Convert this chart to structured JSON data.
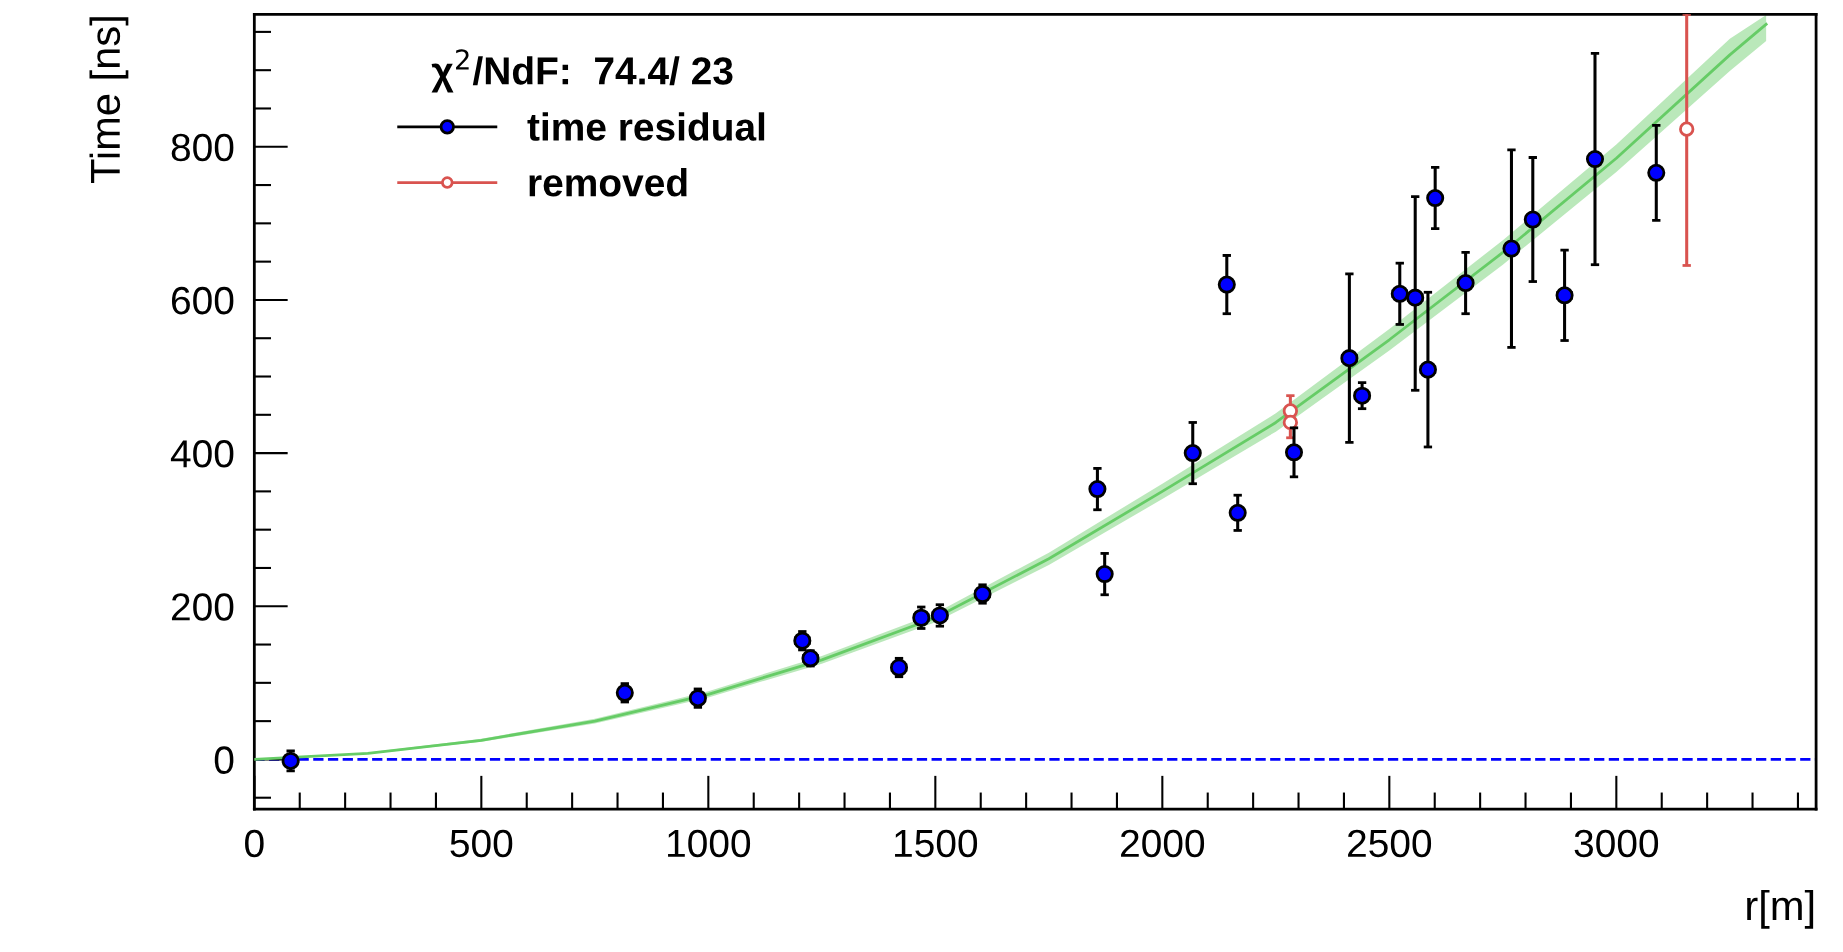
{
  "chart_data": {
    "type": "scatter",
    "xlabel": "r[m]",
    "ylabel": "Time [ns]",
    "legend_title": "χ$^{2}$/NdF:  74.4/ 23",
    "xlim": [
      0,
      3440
    ],
    "ylim": [
      -65,
      973
    ],
    "xticks": [
      0,
      500,
      1000,
      1500,
      2000,
      2500,
      3000
    ],
    "yticks": [
      0,
      200,
      400,
      600,
      800
    ],
    "grid": false,
    "legend": "top left",
    "marker": "circle",
    "ref_lines": [
      {
        "axis": "y",
        "value": 0,
        "color": "#0000ff",
        "line_style": "dashed"
      }
    ],
    "series": [
      {
        "name": "time residual",
        "color": "#0000ff",
        "x": [
          80,
          816,
          977,
          1207,
          1225,
          1420,
          1469,
          1510,
          1604,
          1857,
          1873,
          2067,
          2142,
          2166,
          2290,
          2412,
          2440,
          2523,
          2557,
          2585,
          2601,
          2668,
          2769,
          2816,
          2886,
          2953,
          3088
        ],
        "values": [
          -2,
          87,
          80,
          155,
          132,
          120,
          185,
          188,
          216,
          353,
          242,
          400,
          620,
          322,
          401,
          524,
          475,
          608,
          603,
          509,
          733,
          622,
          667,
          705,
          606,
          784,
          766
        ],
        "errors": [
          13,
          12,
          12,
          12,
          10,
          12,
          14,
          14,
          12,
          27,
          27,
          40,
          38,
          23,
          32,
          110,
          17,
          40,
          [
            482,
            735
          ],
          101,
          40,
          40,
          129,
          81,
          59,
          138,
          62
        ],
        "xerrors": [
          null,
          null,
          null,
          15,
          15,
          15,
          15,
          15,
          15,
          null,
          null,
          null,
          null,
          null,
          null,
          15,
          15,
          15,
          15,
          15,
          null,
          15,
          null,
          null,
          15,
          null,
          null
        ]
      },
      {
        "name": "removed",
        "color": "#d9534f",
        "marker": "open circle",
        "x": [
          2282,
          2282,
          3155
        ],
        "values": [
          455,
          440,
          823
        ],
        "errors": [
          20,
          20,
          [
            645,
            973
          ]
        ],
        "xerrors": [
          10,
          10,
          10
        ]
      },
      {
        "type": "line",
        "color": "#66cc66",
        "marker": "none",
        "x": [
          0,
          250,
          500,
          750,
          1000,
          1250,
          1500,
          1750,
          2000,
          2250,
          2500,
          2750,
          3000,
          3250,
          3330
        ],
        "values": [
          0,
          8,
          25,
          50,
          85,
          130,
          185,
          262,
          350,
          440,
          548,
          662,
          785,
          920,
          960
        ],
        "lower": [
          0,
          7,
          23,
          47,
          81,
          125,
          179,
          254,
          340,
          428,
          534,
          646,
          767,
          899,
          938
        ],
        "upper": [
          0,
          9,
          27,
          53,
          89,
          135,
          191,
          270,
          360,
          452,
          562,
          678,
          803,
          941,
          972
        ]
      }
    ]
  }
}
